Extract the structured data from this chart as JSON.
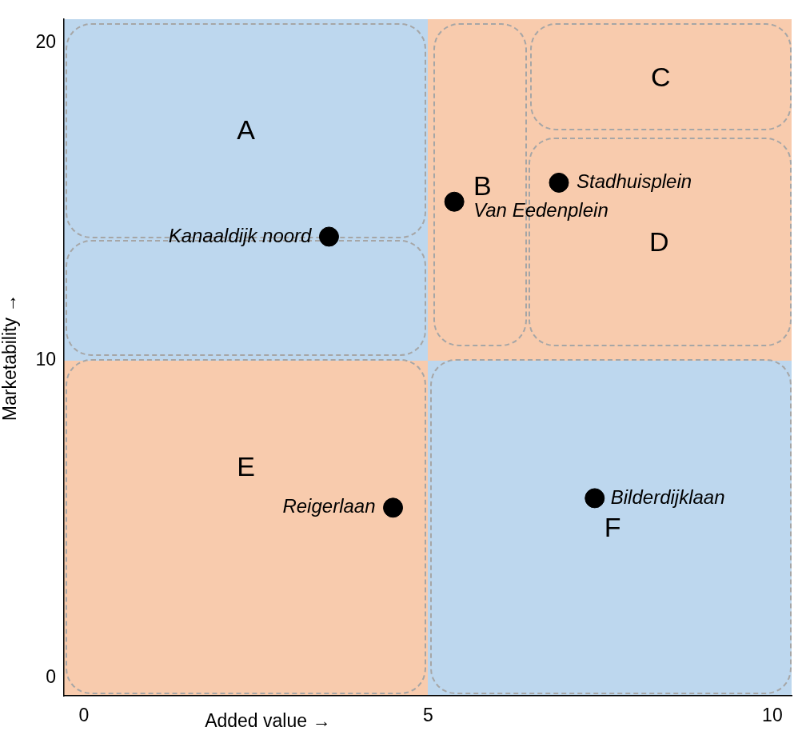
{
  "chart_data": {
    "type": "scatter",
    "xlabel": "Added value →",
    "ylabel": "Marketability →",
    "series": [
      {
        "name": "Kanaaldijk noord",
        "color": "#000000",
        "x": [
          3.56
        ],
        "values": [
          13.9
        ]
      },
      {
        "name": "Reigerlaan",
        "color": "#000000",
        "x": [
          4.49
        ],
        "values": [
          5.37
        ]
      },
      {
        "name": "Van Eedenplein",
        "color": "#000000",
        "x": [
          5.38
        ],
        "values": [
          15.0
        ]
      },
      {
        "name": "Stadhuisplein",
        "color": "#000000",
        "x": [
          6.9
        ],
        "values": [
          15.6
        ]
      },
      {
        "name": "Bilderdijklaan",
        "color": "#000000",
        "x": [
          7.42
        ],
        "values": [
          5.67
        ]
      }
    ],
    "xlim": [
      -0.29,
      10.28
    ],
    "ylim": [
      -0.55,
      20.75
    ],
    "xticks": [
      0,
      5,
      10
    ],
    "yticks": [
      0,
      10,
      20
    ],
    "grid": false,
    "legend": false,
    "marker": "circle",
    "annotations": [
      "A",
      "B",
      "C",
      "D",
      "E",
      "F"
    ]
  }
}
